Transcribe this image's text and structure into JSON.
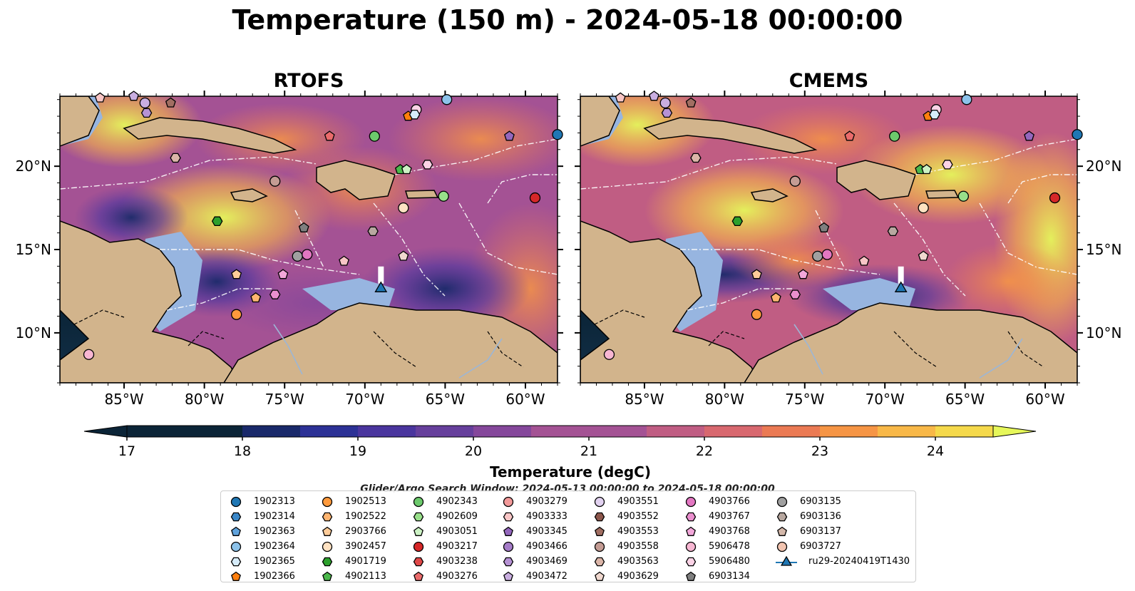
{
  "title": "Temperature (150 m) - 2024-05-18 00:00:00",
  "panels": {
    "left": "RTOFS",
    "right": "CMEMS"
  },
  "axes": {
    "lon_ticks": [
      -85,
      -80,
      -75,
      -70,
      -65,
      -60
    ],
    "lon_labels": [
      "85°W",
      "80°W",
      "75°W",
      "70°W",
      "65°W",
      "60°W"
    ],
    "lat_ticks": [
      10,
      15,
      20
    ],
    "lat_labels": [
      "10°N",
      "15°N",
      "20°N"
    ],
    "lon_range": [
      -89,
      -58
    ],
    "lat_range": [
      7,
      24.2
    ]
  },
  "colorbar": {
    "title": "Temperature (degC)",
    "min": 17,
    "max": 24.5,
    "step": 0.5,
    "tick_values": [
      17,
      18,
      19,
      20,
      21,
      22,
      23,
      24
    ],
    "tick_labels": [
      "17",
      "18",
      "19",
      "20",
      "21",
      "22",
      "23",
      "24"
    ],
    "extend": "both"
  },
  "search_window": "Glider/Argo Search Window: 2024-05-13 00:00:00 to 2024-05-18 00:00:00",
  "colors": {
    "land": "#d2b48c",
    "shelf": "#97b5e0",
    "palette": [
      "#0b2437",
      "#19296a",
      "#2c3196",
      "#4a359e",
      "#663f9c",
      "#85479b",
      "#a45294",
      "#c05d83",
      "#d8686f",
      "#eb7a54",
      "#f69545",
      "#f8b848",
      "#f5d94b",
      "#e6f75a"
    ]
  },
  "legend": [
    {
      "label": "1902313",
      "marker": "circle",
      "color": "#1f77b4"
    },
    {
      "label": "1902314",
      "marker": "hexagon",
      "color": "#3a87c8"
    },
    {
      "label": "1902363",
      "marker": "pentagon",
      "color": "#5fa2dc"
    },
    {
      "label": "1902364",
      "marker": "circle",
      "color": "#8cc2ea"
    },
    {
      "label": "1902365",
      "marker": "hexagon",
      "color": "#d6ecfa"
    },
    {
      "label": "1902366",
      "marker": "pentagon",
      "color": "#ff7f0e"
    },
    {
      "label": "1902513",
      "marker": "circle",
      "color": "#ff9a3c"
    },
    {
      "label": "1902522",
      "marker": "hexagon",
      "color": "#ffb470"
    },
    {
      "label": "2903766",
      "marker": "pentagon",
      "color": "#ffcc99"
    },
    {
      "label": "3902457",
      "marker": "circle",
      "color": "#ffe2c2"
    },
    {
      "label": "4901719",
      "marker": "hexagon",
      "color": "#2ca02c"
    },
    {
      "label": "4902113",
      "marker": "pentagon",
      "color": "#4cb84c"
    },
    {
      "label": "4902343",
      "marker": "circle",
      "color": "#6cc96c"
    },
    {
      "label": "4902609",
      "marker": "hexagon",
      "color": "#98df8a"
    },
    {
      "label": "4903051",
      "marker": "pentagon",
      "color": "#ccf2c4"
    },
    {
      "label": "4903217",
      "marker": "circle",
      "color": "#d62728"
    },
    {
      "label": "4903238",
      "marker": "hexagon",
      "color": "#e04848"
    },
    {
      "label": "4903276",
      "marker": "pentagon",
      "color": "#ea6b6b"
    },
    {
      "label": "4903279",
      "marker": "circle",
      "color": "#f39a9a"
    },
    {
      "label": "4903333",
      "marker": "hexagon",
      "color": "#f9c6c6"
    },
    {
      "label": "4903345",
      "marker": "pentagon",
      "color": "#9467bd"
    },
    {
      "label": "4903466",
      "marker": "circle",
      "color": "#a57cc8"
    },
    {
      "label": "4903469",
      "marker": "hexagon",
      "color": "#b692d4"
    },
    {
      "label": "4903472",
      "marker": "pentagon",
      "color": "#c9aee0"
    },
    {
      "label": "4903551",
      "marker": "circle",
      "color": "#e2d2f0"
    },
    {
      "label": "4903552",
      "marker": "hexagon",
      "color": "#8c564b"
    },
    {
      "label": "4903553",
      "marker": "pentagon",
      "color": "#a16e62"
    },
    {
      "label": "4903558",
      "marker": "circle",
      "color": "#c49c94"
    },
    {
      "label": "4903563",
      "marker": "hexagon",
      "color": "#dbb5a8"
    },
    {
      "label": "4903629",
      "marker": "pentagon",
      "color": "#f0d8cf"
    },
    {
      "label": "4903766",
      "marker": "circle",
      "color": "#e377c2"
    },
    {
      "label": "4903767",
      "marker": "hexagon",
      "color": "#ea8fce"
    },
    {
      "label": "4903768",
      "marker": "pentagon",
      "color": "#f2a7da"
    },
    {
      "label": "5906478",
      "marker": "circle",
      "color": "#f7b6d2"
    },
    {
      "label": "5906480",
      "marker": "hexagon",
      "color": "#fbd3e6"
    },
    {
      "label": "6903134",
      "marker": "pentagon",
      "color": "#7f7f7f"
    },
    {
      "label": "6903135",
      "marker": "circle",
      "color": "#a0a0a0"
    },
    {
      "label": "6903136",
      "marker": "hexagon",
      "color": "#b8a8a0"
    },
    {
      "label": "6903137",
      "marker": "pentagon",
      "color": "#d4b8aa"
    },
    {
      "label": "6903727",
      "marker": "circle",
      "color": "#f2c4b0"
    },
    {
      "label": "ru29-20240419T1430",
      "marker": "triangle-line",
      "color": "#1f77b4"
    }
  ],
  "floats": [
    {
      "lon": -86.5,
      "lat": 24.1,
      "marker": "pentagon",
      "color": "#f9c6c6"
    },
    {
      "lon": -84.4,
      "lat": 24.2,
      "marker": "pentagon",
      "color": "#c9aee0"
    },
    {
      "lon": -83.7,
      "lat": 23.8,
      "marker": "circle",
      "color": "#c9aee0"
    },
    {
      "lon": -83.6,
      "lat": 23.2,
      "marker": "hexagon",
      "color": "#b692d4"
    },
    {
      "lon": -82.1,
      "lat": 23.8,
      "marker": "pentagon",
      "color": "#a16e62"
    },
    {
      "lon": -81.8,
      "lat": 20.5,
      "marker": "hexagon",
      "color": "#dbb5a8"
    },
    {
      "lon": -79.2,
      "lat": 16.7,
      "marker": "hexagon",
      "color": "#2ca02c"
    },
    {
      "lon": -75.6,
      "lat": 19.1,
      "marker": "circle",
      "color": "#c49c94"
    },
    {
      "lon": -73.8,
      "lat": 16.3,
      "marker": "pentagon",
      "color": "#7f7f7f"
    },
    {
      "lon": -72.2,
      "lat": 21.8,
      "marker": "pentagon",
      "color": "#ea6b6b"
    },
    {
      "lon": -74.2,
      "lat": 14.6,
      "marker": "circle",
      "color": "#a0a0a0"
    },
    {
      "lon": -73.6,
      "lat": 14.7,
      "marker": "circle",
      "color": "#e377c2"
    },
    {
      "lon": -78.0,
      "lat": 13.5,
      "marker": "pentagon",
      "color": "#ffcc99"
    },
    {
      "lon": -75.1,
      "lat": 13.5,
      "marker": "pentagon",
      "color": "#f2a7da"
    },
    {
      "lon": -76.8,
      "lat": 12.1,
      "marker": "pentagon",
      "color": "#ffb470"
    },
    {
      "lon": -75.6,
      "lat": 12.3,
      "marker": "hexagon",
      "color": "#ea8fce"
    },
    {
      "lon": -78.0,
      "lat": 11.1,
      "marker": "circle",
      "color": "#ff9a3c"
    },
    {
      "lon": -71.3,
      "lat": 14.3,
      "marker": "pentagon",
      "color": "#f9c6c6"
    },
    {
      "lon": -69.5,
      "lat": 16.1,
      "marker": "hexagon",
      "color": "#b8a8a0"
    },
    {
      "lon": -69.4,
      "lat": 21.8,
      "marker": "circle",
      "color": "#6cc96c"
    },
    {
      "lon": -67.8,
      "lat": 19.8,
      "marker": "pentagon",
      "color": "#4cb84c"
    },
    {
      "lon": -67.4,
      "lat": 19.8,
      "marker": "pentagon",
      "color": "#ccf2c4"
    },
    {
      "lon": -67.6,
      "lat": 17.5,
      "marker": "circle",
      "color": "#ffe2c2"
    },
    {
      "lon": -67.6,
      "lat": 14.6,
      "marker": "pentagon",
      "color": "#f0d8cf"
    },
    {
      "lon": -67.3,
      "lat": 23.0,
      "marker": "pentagon",
      "color": "#ff7f0e"
    },
    {
      "lon": -66.8,
      "lat": 23.4,
      "marker": "circle",
      "color": "#fbd3e6"
    },
    {
      "lon": -66.9,
      "lat": 23.1,
      "marker": "hexagon",
      "color": "#d6ecfa"
    },
    {
      "lon": -66.1,
      "lat": 20.1,
      "marker": "hexagon",
      "color": "#fbd3e6"
    },
    {
      "lon": -65.1,
      "lat": 18.2,
      "marker": "circle",
      "color": "#98df8a"
    },
    {
      "lon": -64.9,
      "lat": 24.0,
      "marker": "circle",
      "color": "#8cc2ea"
    },
    {
      "lon": -61.0,
      "lat": 21.8,
      "marker": "pentagon",
      "color": "#9467bd"
    },
    {
      "lon": -59.4,
      "lat": 18.1,
      "marker": "circle",
      "color": "#d62728"
    },
    {
      "lon": -58.0,
      "lat": 21.9,
      "marker": "circle",
      "color": "#1f77b4"
    },
    {
      "lon": -87.2,
      "lat": 8.7,
      "marker": "circle",
      "color": "#f7b6d2"
    }
  ],
  "glider": {
    "lon": -69.0,
    "lat": 12.7,
    "color": "#1f77b4"
  }
}
